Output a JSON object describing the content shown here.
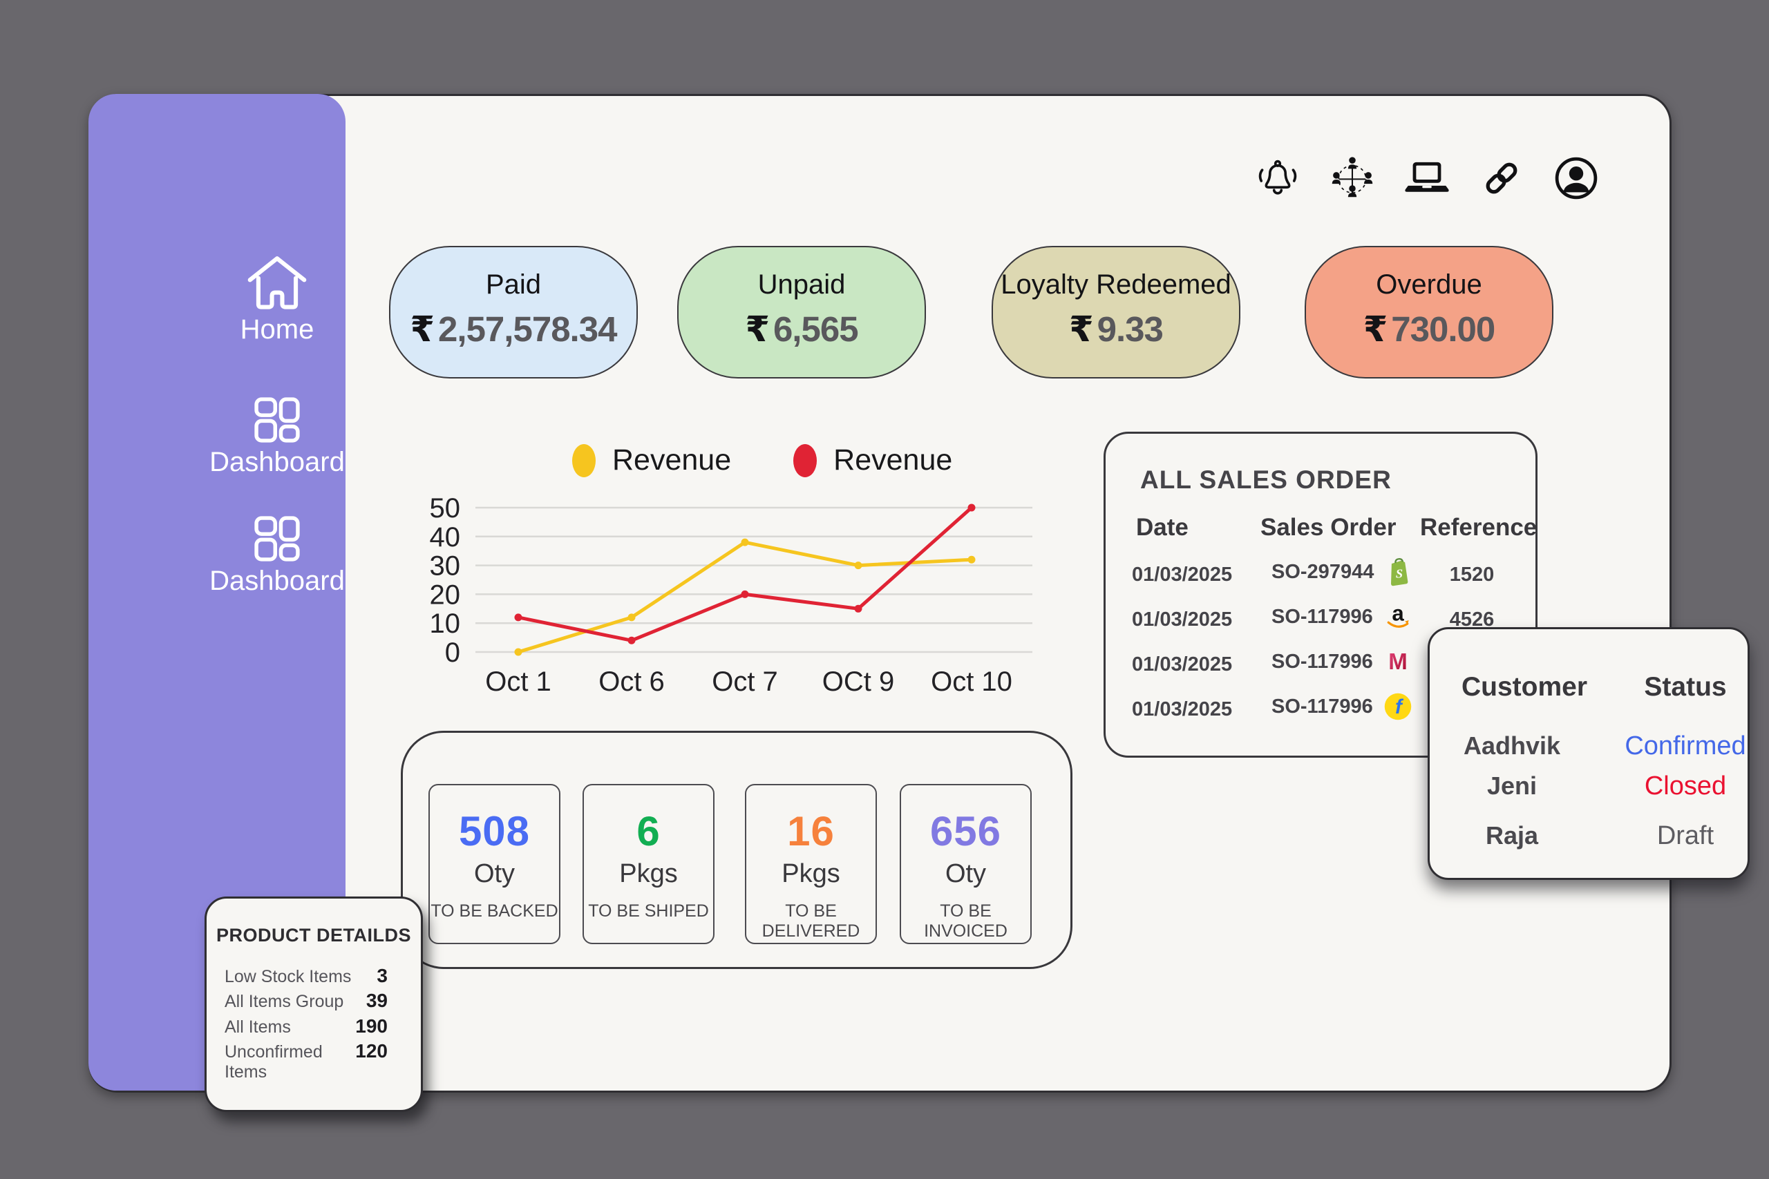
{
  "sidebar": {
    "items": [
      {
        "label": "Home",
        "icon": "home-icon"
      },
      {
        "label": "Dashboard",
        "icon": "dashboard-grid-icon"
      },
      {
        "label": "Dashboard",
        "icon": "dashboard-grid-icon"
      }
    ],
    "bg_color": "#8d86dc"
  },
  "topbar": {
    "icons": [
      "notification-bell-icon",
      "network-people-icon",
      "laptop-icon",
      "link-icon",
      "user-avatar-icon"
    ]
  },
  "summary_pills": [
    {
      "label": "Paid",
      "currency": "₹",
      "amount": "2,57,578.34",
      "bg": "#d9e9f8"
    },
    {
      "label": "Unpaid",
      "currency": "₹",
      "amount": "6,565",
      "bg": "#c9e7c3"
    },
    {
      "label": "Loyalty Redeemed",
      "currency": "₹",
      "amount": "9.33",
      "bg": "#ddd8b2"
    },
    {
      "label": "Overdue",
      "currency": "₹",
      "amount": "730.00",
      "bg": "#f4a287"
    }
  ],
  "chart_data": {
    "type": "line",
    "x": [
      "Oct 1",
      "Oct 6",
      "Oct 7",
      "OCt 9",
      "Oct 10"
    ],
    "series": [
      {
        "name": "Revenue",
        "color": "#f6c51f",
        "values": [
          0,
          12,
          38,
          30,
          32
        ]
      },
      {
        "name": "Revenue",
        "color": "#e02334",
        "values": [
          12,
          4,
          20,
          15,
          50
        ]
      }
    ],
    "ylim": [
      0,
      50
    ],
    "yticks": [
      0,
      10,
      20,
      30,
      40,
      50
    ],
    "legend_position": "top",
    "grid": "horizontal"
  },
  "sales_orders": {
    "title": "ALL SALES ORDER",
    "columns": [
      "Date",
      "Sales Order",
      "Reference"
    ],
    "rows": [
      {
        "date": "01/03/2025",
        "order": "SO-297944",
        "marketplace": "shopify",
        "reference": "1520"
      },
      {
        "date": "01/03/2025",
        "order": "SO-117996",
        "marketplace": "amazon",
        "reference": "4526"
      },
      {
        "date": "01/03/2025",
        "order": "SO-117996",
        "marketplace": "myntra",
        "reference": ""
      },
      {
        "date": "01/03/2025",
        "order": "SO-117996",
        "marketplace": "flipkart",
        "reference": ""
      }
    ]
  },
  "customer_status": {
    "columns": [
      "Customer",
      "Status"
    ],
    "rows": [
      {
        "customer": "Aadhvik",
        "status": "Confirmed",
        "status_color": "#4468e8"
      },
      {
        "customer": "Jeni",
        "status": "Closed",
        "status_color": "#ea1130"
      },
      {
        "customer": "Raja",
        "status": "Draft",
        "status_color": "#5d5c61"
      }
    ]
  },
  "fulfillment_stats": [
    {
      "value": "508",
      "unit": "Oty",
      "caption": "TO BE BACKED",
      "color": "#4a6cf3"
    },
    {
      "value": "6",
      "unit": "Pkgs",
      "caption": "TO BE SHIPED",
      "color": "#12ae52"
    },
    {
      "value": "16",
      "unit": "Pkgs",
      "caption": "TO BE DELIVERED",
      "color": "#f6813c"
    },
    {
      "value": "656",
      "unit": "Oty",
      "caption": "TO BE INVOICED",
      "color": "#8179e2"
    }
  ],
  "product_details": {
    "title": "PRODUCT DETAILDS",
    "rows": [
      {
        "label": "Low Stock Items",
        "value": "3"
      },
      {
        "label": "All Items Group",
        "value": "39"
      },
      {
        "label": "All Items",
        "value": "190"
      },
      {
        "label": "Unconfirmed Items",
        "value": "120"
      }
    ]
  },
  "colors": {
    "page_bg": "#69676c",
    "card_bg": "#f7f6f3",
    "sidebar_purple": "#8d86dc",
    "ink": "#2f2e32"
  }
}
